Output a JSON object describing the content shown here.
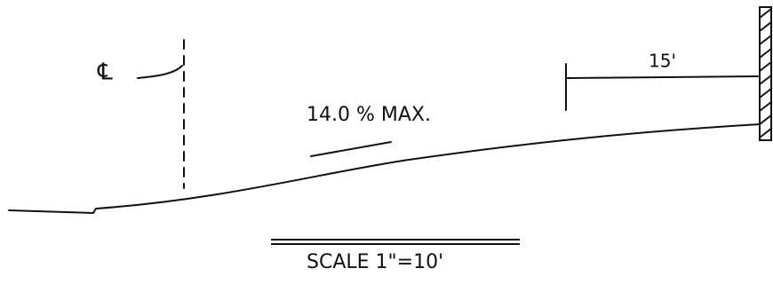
{
  "labels": {
    "centerline": "℄",
    "grade": "14.0 % MAX.",
    "dimension": "15'",
    "scale": "SCALE 1\"=10'"
  }
}
